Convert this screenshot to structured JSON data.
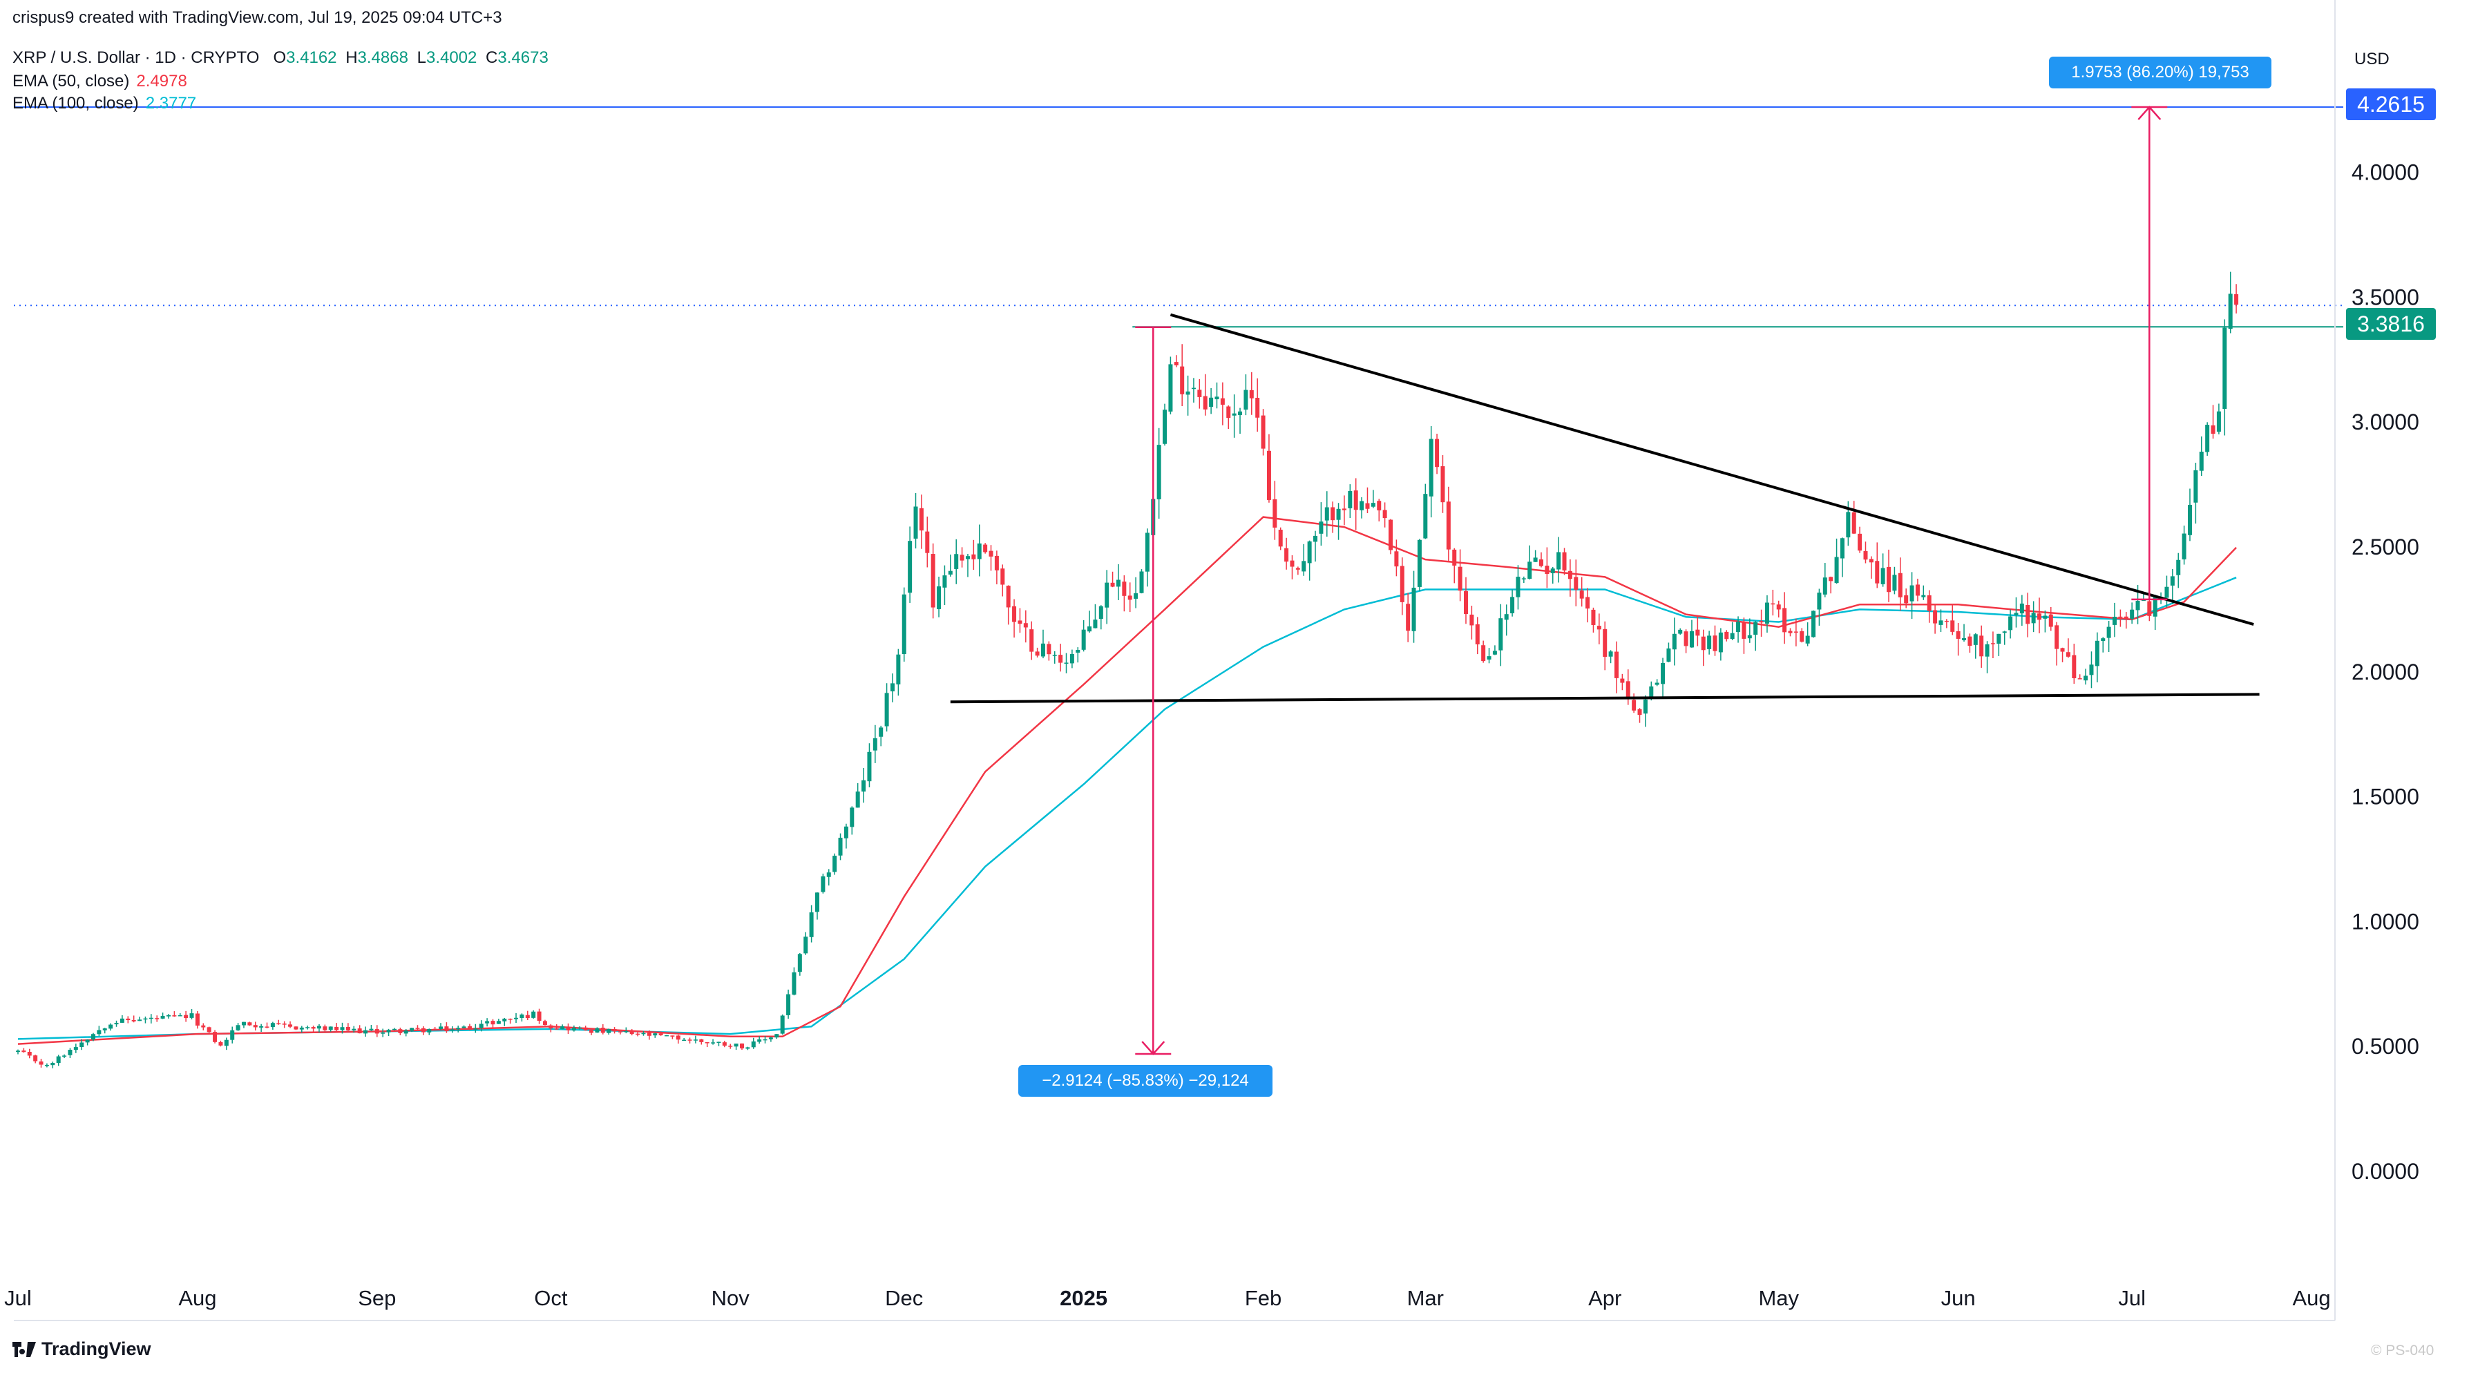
{
  "header": {
    "created_by": "crispus9 created with TradingView.com, Jul 19, 2025 09:04 UTC+3",
    "symbol": "XRP / U.S. Dollar · 1D · CRYPTO",
    "ohlc": {
      "o_label": "O",
      "o": "3.4162",
      "h_label": "H",
      "h": "3.4868",
      "l_label": "L",
      "l": "3.4002",
      "c_label": "C",
      "c": "3.4673"
    },
    "ema50_label": "EMA (50, close)",
    "ema50_value": "2.4978",
    "ema100_label": "EMA (100, close)",
    "ema100_value": "2.3777"
  },
  "price_axis": {
    "currency": "USD"
  },
  "tags": {
    "target": "4.2615",
    "current": "3.3816"
  },
  "measures": {
    "up": "1.9753 (86.20%) 19,753",
    "down": "−2.9124 (−85.83%) −29,124"
  },
  "footer": {
    "logo": "TradingView",
    "watermark": "© PS-040"
  },
  "colors": {
    "up": "#089981",
    "down": "#f23645",
    "ema50": "#f23645",
    "ema100": "#00bcd4",
    "measure": "#e91e63",
    "target_line": "#2962ff",
    "accent_blue": "#2196f3"
  },
  "chart_data": {
    "type": "candlestick",
    "title": "XRP / U.S. Dollar · 1D · CRYPTO",
    "xlabel": "",
    "ylabel": "USD",
    "ylim": [
      -0.25,
      4.6
    ],
    "y_ticks": [
      "0.0000",
      "0.5000",
      "1.0000",
      "1.5000",
      "2.0000",
      "2.5000",
      "3.0000",
      "3.5000",
      "4.0000"
    ],
    "x_ticks": [
      {
        "date": "2024-07-01",
        "label": "Jul"
      },
      {
        "date": "2024-08-01",
        "label": "Aug"
      },
      {
        "date": "2024-09-01",
        "label": "Sep"
      },
      {
        "date": "2024-10-01",
        "label": "Oct"
      },
      {
        "date": "2024-11-01",
        "label": "Nov"
      },
      {
        "date": "2024-12-01",
        "label": "Dec"
      },
      {
        "date": "2025-01-01",
        "label": "2025"
      },
      {
        "date": "2025-02-01",
        "label": "Feb"
      },
      {
        "date": "2025-03-01",
        "label": "Mar"
      },
      {
        "date": "2025-04-01",
        "label": "Apr"
      },
      {
        "date": "2025-05-01",
        "label": "May"
      },
      {
        "date": "2025-06-01",
        "label": "Jun"
      },
      {
        "date": "2025-07-01",
        "label": "Jul"
      },
      {
        "date": "2025-08-01",
        "label": "Aug"
      }
    ],
    "close_anchors": [
      [
        "2024-07-01",
        0.48
      ],
      [
        "2024-07-06",
        0.42
      ],
      [
        "2024-07-12",
        0.52
      ],
      [
        "2024-07-17",
        0.6
      ],
      [
        "2024-07-31",
        0.62
      ],
      [
        "2024-08-05",
        0.5
      ],
      [
        "2024-08-08",
        0.59
      ],
      [
        "2024-08-31",
        0.56
      ],
      [
        "2024-09-15",
        0.57
      ],
      [
        "2024-09-28",
        0.63
      ],
      [
        "2024-10-01",
        0.58
      ],
      [
        "2024-10-20",
        0.54
      ],
      [
        "2024-11-04",
        0.5
      ],
      [
        "2024-11-09",
        0.55
      ],
      [
        "2024-11-16",
        1.1
      ],
      [
        "2024-11-23",
        1.5
      ],
      [
        "2024-11-30",
        2.05
      ],
      [
        "2024-12-03",
        2.7
      ],
      [
        "2024-12-06",
        2.3
      ],
      [
        "2024-12-09",
        2.45
      ],
      [
        "2024-12-16",
        2.5
      ],
      [
        "2024-12-20",
        2.18
      ],
      [
        "2024-12-27",
        2.05
      ],
      [
        "2024-12-31",
        2.08
      ],
      [
        "2025-01-06",
        2.38
      ],
      [
        "2025-01-10",
        2.3
      ],
      [
        "2025-01-16",
        3.2
      ],
      [
        "2025-01-20",
        3.15
      ],
      [
        "2025-01-25",
        3.05
      ],
      [
        "2025-01-31",
        3.08
      ],
      [
        "2025-02-03",
        2.55
      ],
      [
        "2025-02-07",
        2.4
      ],
      [
        "2025-02-14",
        2.7
      ],
      [
        "2025-02-22",
        2.6
      ],
      [
        "2025-02-26",
        2.15
      ],
      [
        "2025-03-02",
        2.92
      ],
      [
        "2025-03-05",
        2.5
      ],
      [
        "2025-03-11",
        2.02
      ],
      [
        "2025-03-18",
        2.4
      ],
      [
        "2025-03-25",
        2.45
      ],
      [
        "2025-04-01",
        2.1
      ],
      [
        "2025-04-07",
        1.8
      ],
      [
        "2025-04-13",
        2.15
      ],
      [
        "2025-04-21",
        2.12
      ],
      [
        "2025-04-30",
        2.25
      ],
      [
        "2025-05-05",
        2.13
      ],
      [
        "2025-05-09",
        2.35
      ],
      [
        "2025-05-13",
        2.6
      ],
      [
        "2025-05-18",
        2.4
      ],
      [
        "2025-05-31",
        2.18
      ],
      [
        "2025-06-05",
        2.1
      ],
      [
        "2025-06-12",
        2.25
      ],
      [
        "2025-06-16",
        2.2
      ],
      [
        "2025-06-22",
        1.95
      ],
      [
        "2025-06-26",
        2.15
      ],
      [
        "2025-07-02",
        2.25
      ],
      [
        "2025-07-07",
        2.3
      ],
      [
        "2025-07-10",
        2.6
      ],
      [
        "2025-07-13",
        2.9
      ],
      [
        "2025-07-16",
        3.05
      ],
      [
        "2025-07-17",
        3.45
      ],
      [
        "2025-07-19",
        3.47
      ]
    ],
    "ema50": [
      [
        "2024-07-01",
        0.51
      ],
      [
        "2024-08-01",
        0.55
      ],
      [
        "2024-09-01",
        0.56
      ],
      [
        "2024-10-01",
        0.58
      ],
      [
        "2024-11-01",
        0.54
      ],
      [
        "2024-11-10",
        0.54
      ],
      [
        "2024-11-20",
        0.66
      ],
      [
        "2024-12-01",
        1.1
      ],
      [
        "2024-12-15",
        1.6
      ],
      [
        "2025-01-01",
        1.95
      ],
      [
        "2025-01-15",
        2.25
      ],
      [
        "2025-02-01",
        2.62
      ],
      [
        "2025-02-15",
        2.58
      ],
      [
        "2025-03-01",
        2.45
      ],
      [
        "2025-03-15",
        2.42
      ],
      [
        "2025-04-01",
        2.38
      ],
      [
        "2025-04-15",
        2.23
      ],
      [
        "2025-05-01",
        2.18
      ],
      [
        "2025-05-15",
        2.27
      ],
      [
        "2025-06-01",
        2.27
      ],
      [
        "2025-06-15",
        2.24
      ],
      [
        "2025-07-01",
        2.21
      ],
      [
        "2025-07-10",
        2.28
      ],
      [
        "2025-07-19",
        2.4978
      ]
    ],
    "ema100": [
      [
        "2024-07-01",
        0.53
      ],
      [
        "2024-08-01",
        0.55
      ],
      [
        "2024-09-01",
        0.56
      ],
      [
        "2024-10-01",
        0.57
      ],
      [
        "2024-11-01",
        0.55
      ],
      [
        "2024-11-15",
        0.58
      ],
      [
        "2024-12-01",
        0.85
      ],
      [
        "2024-12-15",
        1.22
      ],
      [
        "2025-01-01",
        1.55
      ],
      [
        "2025-01-15",
        1.85
      ],
      [
        "2025-02-01",
        2.1
      ],
      [
        "2025-02-15",
        2.25
      ],
      [
        "2025-03-01",
        2.33
      ],
      [
        "2025-03-15",
        2.33
      ],
      [
        "2025-04-01",
        2.33
      ],
      [
        "2025-04-15",
        2.22
      ],
      [
        "2025-05-01",
        2.2
      ],
      [
        "2025-05-15",
        2.25
      ],
      [
        "2025-06-01",
        2.24
      ],
      [
        "2025-06-15",
        2.22
      ],
      [
        "2025-07-01",
        2.21
      ],
      [
        "2025-07-19",
        2.3777
      ]
    ],
    "trendlines": [
      {
        "name": "descending resistance",
        "from": [
          "2025-01-16",
          3.43
        ],
        "to": [
          "2025-07-22",
          2.19
        ]
      },
      {
        "name": "horizontal support",
        "from": [
          "2024-12-09",
          1.88
        ],
        "to": [
          "2025-07-23",
          1.91
        ]
      }
    ],
    "horizontal_levels": [
      {
        "value": 4.2615,
        "kind": "target"
      },
      {
        "value": 3.3816,
        "kind": "level",
        "from": "2025-01-13"
      },
      {
        "value": 3.4673,
        "kind": "last-price-dotted"
      }
    ],
    "measure_arrows": [
      {
        "x": "2025-01-13",
        "from": 3.38,
        "to": 0.47,
        "label": "−2.9124 (−85.83%) −29,124"
      },
      {
        "x": "2025-07-04",
        "from": 2.29,
        "to": 4.2615,
        "label": "1.9753 (86.20%) 19,753"
      }
    ]
  }
}
